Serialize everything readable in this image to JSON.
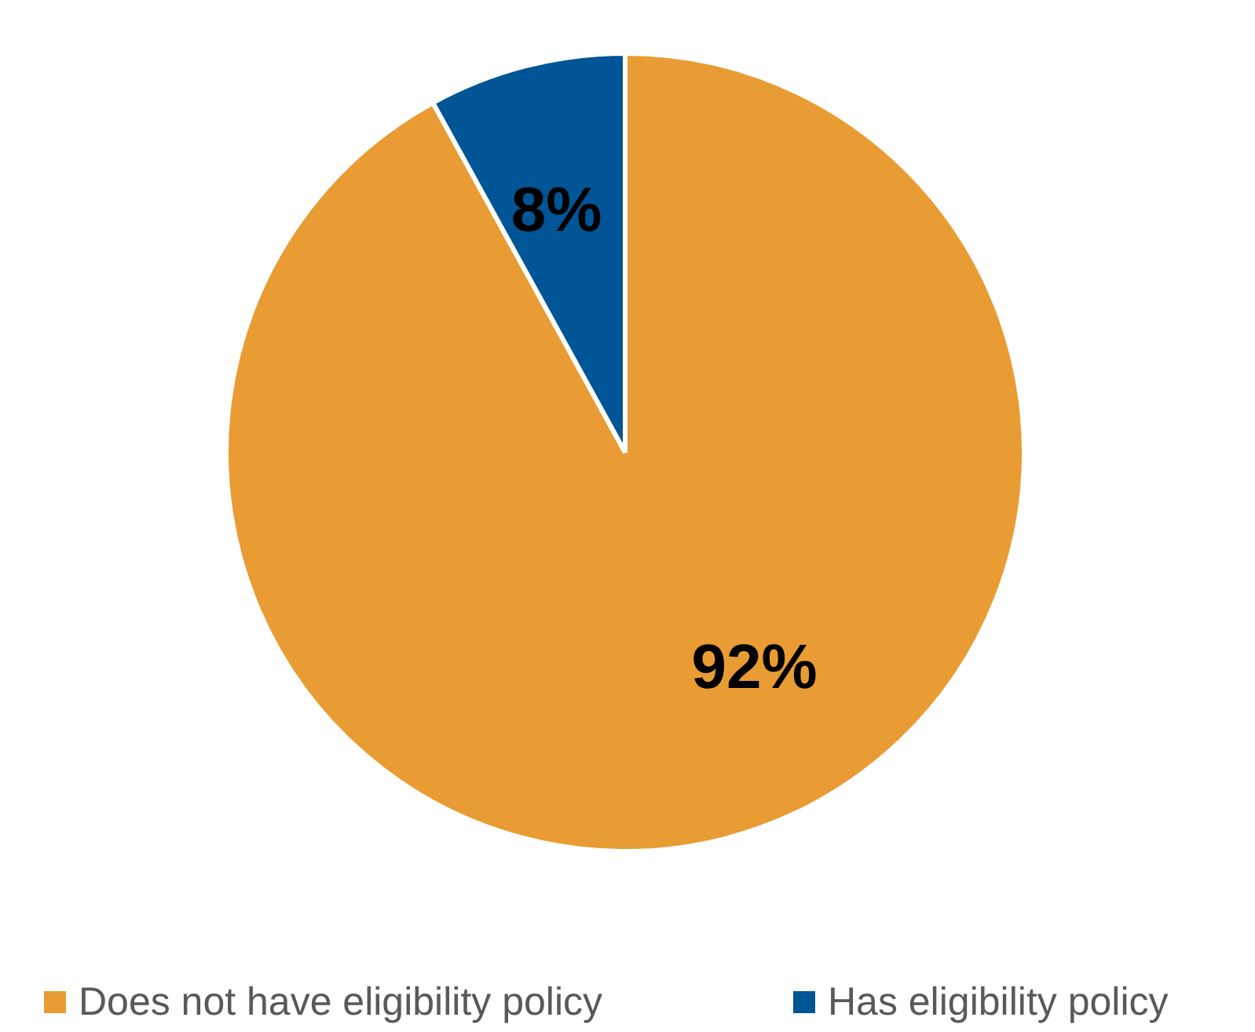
{
  "chart_data": {
    "type": "pie",
    "categories": [
      "Does not have eligibility policy",
      "Has eligibility policy"
    ],
    "values": [
      92,
      8
    ],
    "colors": [
      "#e99c33",
      "#005596"
    ],
    "value_labels": [
      "92%",
      "8%"
    ],
    "legend": "bottom"
  }
}
